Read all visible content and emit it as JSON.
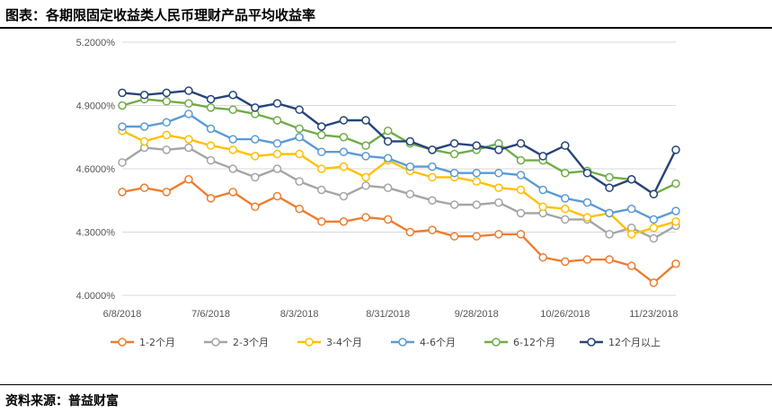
{
  "title": "图表：各期限固定收益类人民币理财产品平均收益率",
  "source": "资料来源：普益财富",
  "chart_data": {
    "type": "line",
    "title": "",
    "xlabel": "",
    "ylabel": "",
    "ylim": [
      4.0,
      5.2
    ],
    "y_ticks": [
      4.0,
      4.3,
      4.6,
      4.9,
      5.2
    ],
    "y_tick_labels": [
      "4.0000%",
      "4.3000%",
      "4.6000%",
      "4.9000%",
      "5.2000%"
    ],
    "x_tick_labels": [
      "6/8/2018",
      "7/6/2018",
      "8/3/2018",
      "8/31/2018",
      "9/28/2018",
      "10/26/2018",
      "11/23/2018"
    ],
    "x_tick_index": [
      0,
      4,
      8,
      12,
      16,
      20,
      24
    ],
    "x_count": 26,
    "grid": "horizontal",
    "legend_position": "bottom",
    "series": [
      {
        "name": "1-2个月",
        "color": "#ED7D31",
        "values": [
          4.49,
          4.51,
          4.49,
          4.55,
          4.46,
          4.49,
          4.42,
          4.47,
          4.41,
          4.35,
          4.35,
          4.37,
          4.36,
          4.3,
          4.31,
          4.28,
          4.28,
          4.29,
          4.29,
          4.18,
          4.16,
          4.17,
          4.17,
          4.14,
          4.06,
          4.15
        ]
      },
      {
        "name": "2-3个月",
        "color": "#A5A5A5",
        "values": [
          4.63,
          4.7,
          4.69,
          4.7,
          4.64,
          4.6,
          4.56,
          4.6,
          4.54,
          4.5,
          4.47,
          4.52,
          4.51,
          4.48,
          4.45,
          4.43,
          4.43,
          4.44,
          4.39,
          4.39,
          4.36,
          4.36,
          4.29,
          4.32,
          4.27,
          4.33
        ]
      },
      {
        "name": "3-4个月",
        "color": "#FFC000",
        "values": [
          4.78,
          4.73,
          4.76,
          4.74,
          4.71,
          4.69,
          4.66,
          4.67,
          4.67,
          4.6,
          4.61,
          4.56,
          4.64,
          4.59,
          4.56,
          4.56,
          4.54,
          4.51,
          4.5,
          4.42,
          4.41,
          4.37,
          4.39,
          4.29,
          4.32,
          4.35
        ]
      },
      {
        "name": "4-6个月",
        "color": "#5B9BD5",
        "values": [
          4.8,
          4.8,
          4.82,
          4.86,
          4.79,
          4.74,
          4.74,
          4.72,
          4.75,
          4.68,
          4.68,
          4.66,
          4.65,
          4.61,
          4.61,
          4.58,
          4.58,
          4.58,
          4.57,
          4.5,
          4.46,
          4.44,
          4.39,
          4.41,
          4.36,
          4.4
        ]
      },
      {
        "name": "6-12个月",
        "color": "#70AD47",
        "values": [
          4.9,
          4.93,
          4.92,
          4.91,
          4.89,
          4.88,
          4.86,
          4.83,
          4.79,
          4.76,
          4.75,
          4.71,
          4.78,
          4.72,
          4.69,
          4.67,
          4.69,
          4.72,
          4.64,
          4.64,
          4.58,
          4.59,
          4.56,
          4.55,
          4.48,
          4.53
        ]
      },
      {
        "name": "12个月以上",
        "color": "#264478",
        "values": [
          4.96,
          4.95,
          4.96,
          4.97,
          4.93,
          4.95,
          4.89,
          4.91,
          4.88,
          4.8,
          4.83,
          4.83,
          4.73,
          4.73,
          4.69,
          4.72,
          4.71,
          4.69,
          4.72,
          4.66,
          4.71,
          4.58,
          4.51,
          4.55,
          4.48,
          4.69
        ]
      }
    ]
  }
}
